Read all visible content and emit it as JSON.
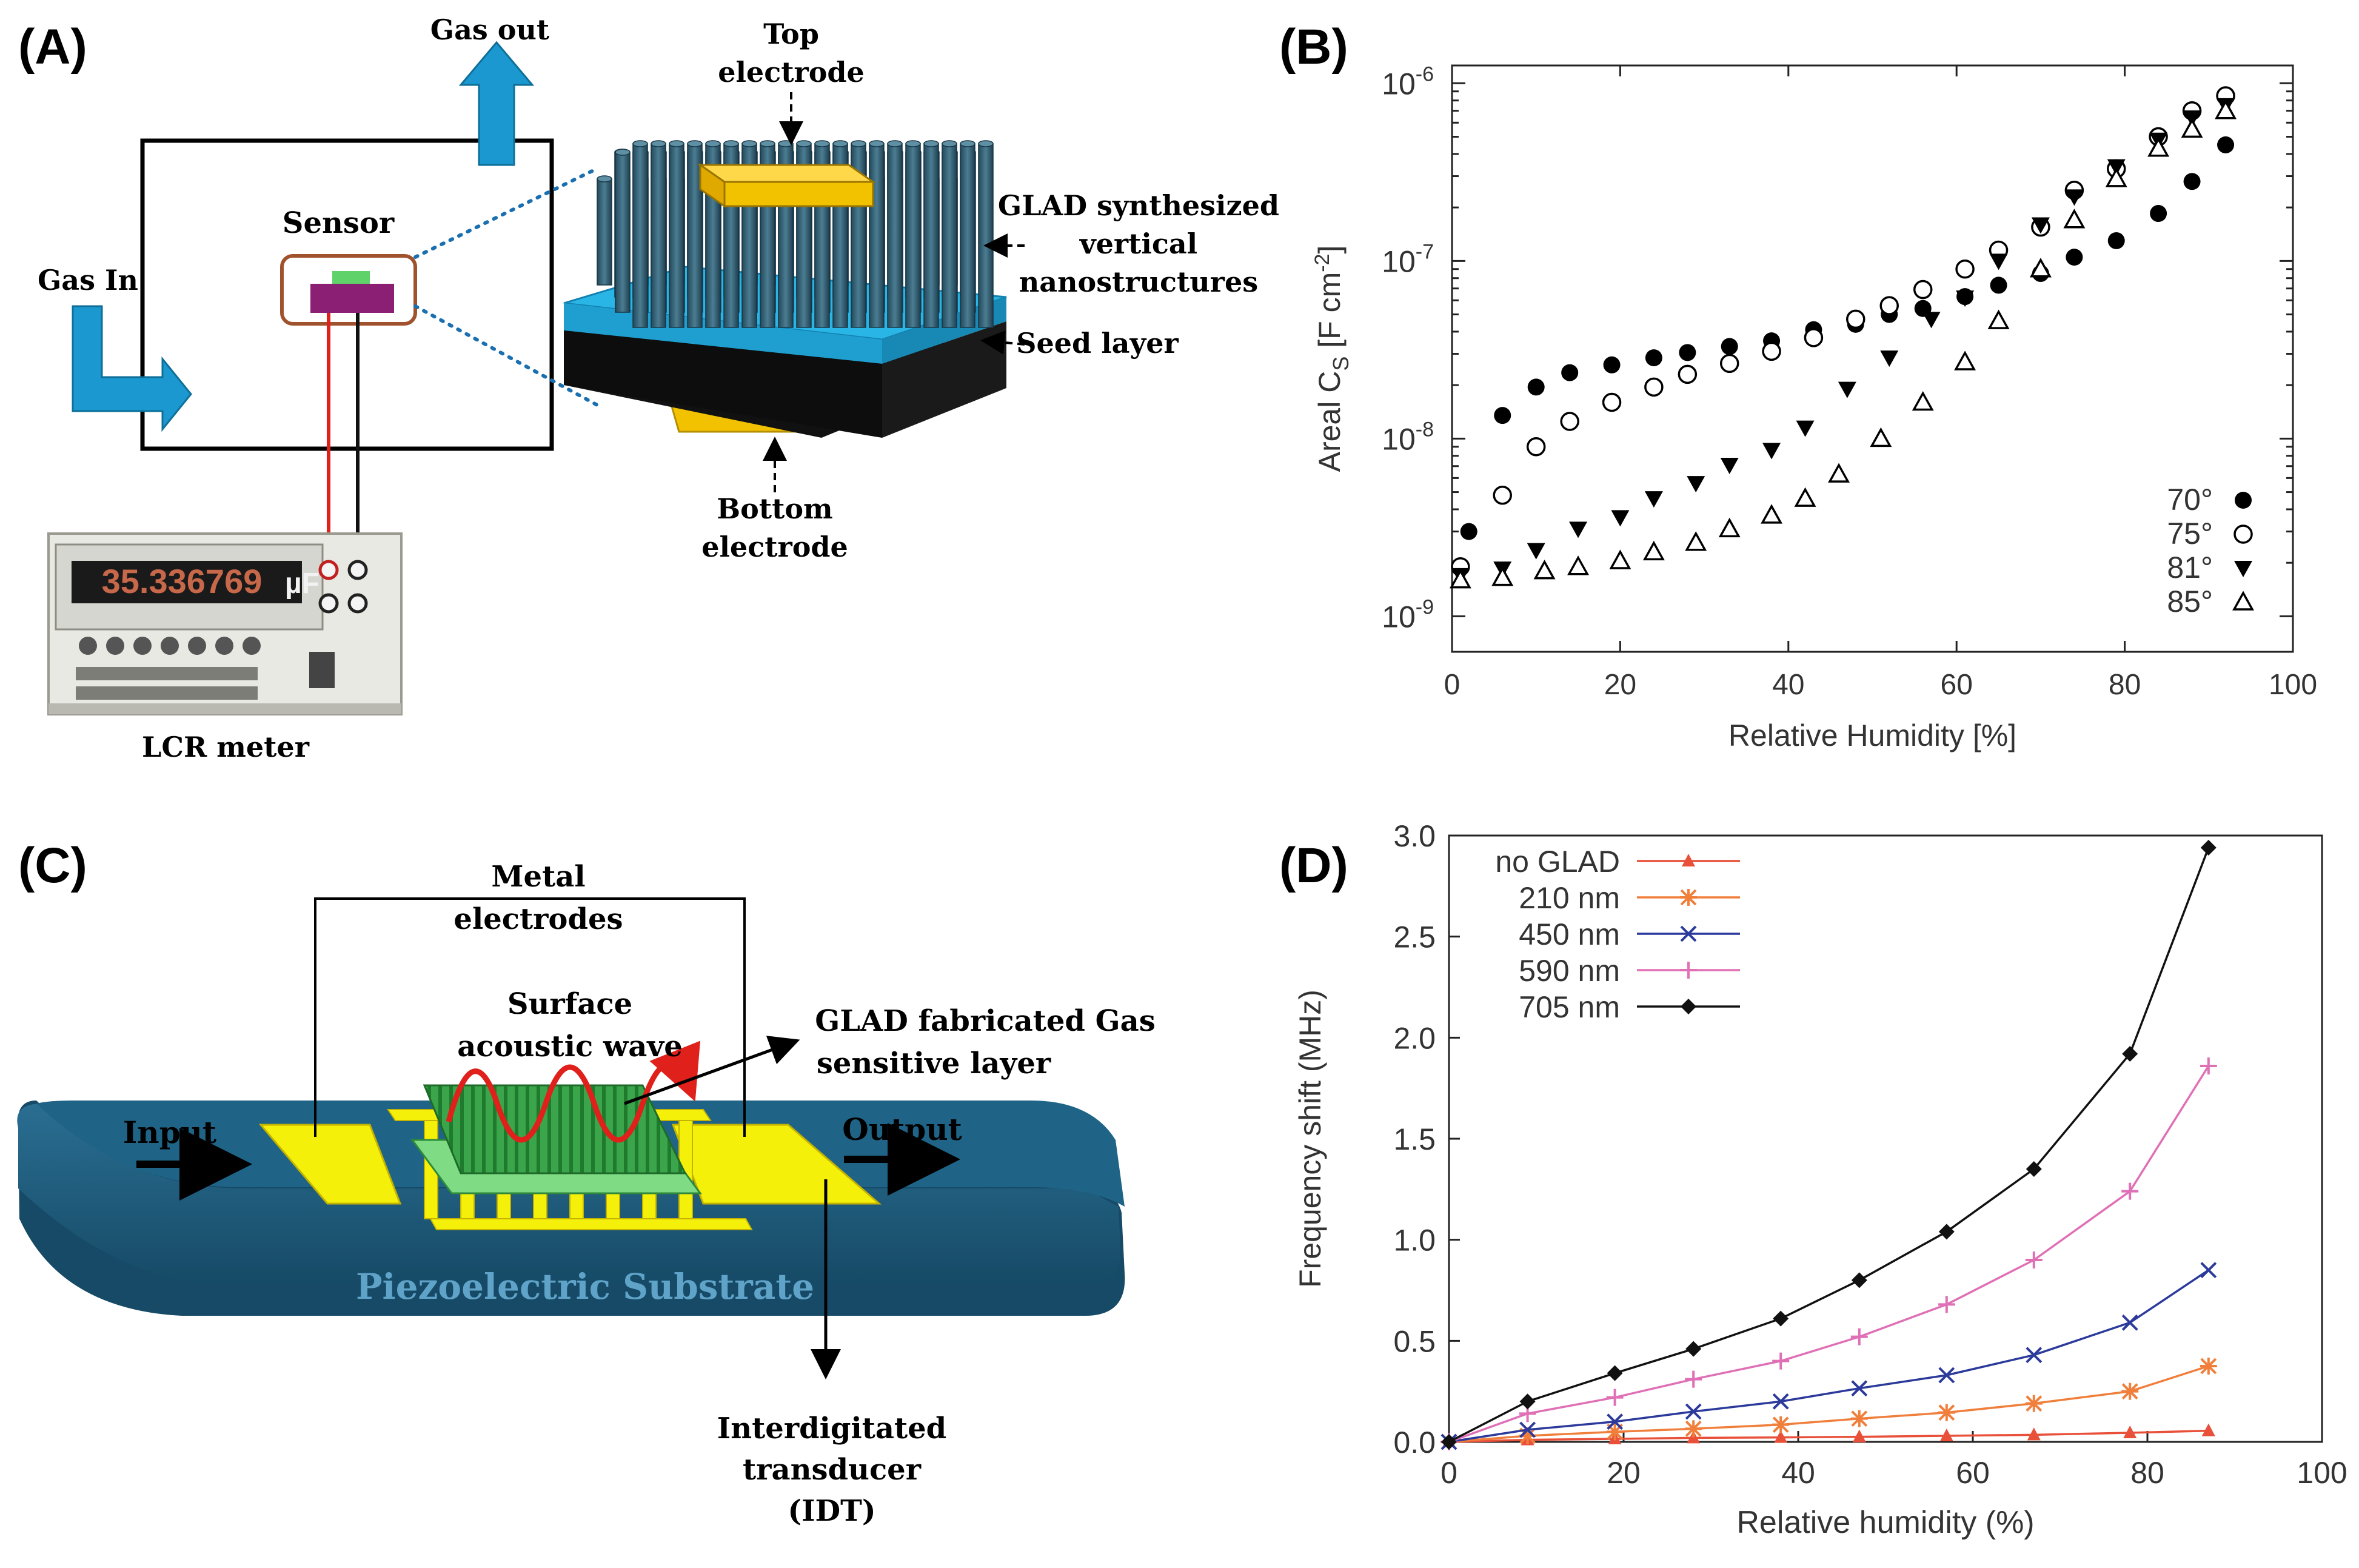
{
  "panels": {
    "a": {
      "label": "(A)",
      "gas_out": "Gas out",
      "gas_in": "Gas In",
      "sensor": "Sensor",
      "lcr_meter": "LCR meter",
      "meter_display": "35.336769",
      "meter_unit": "µF",
      "top_electrode": [
        "Top",
        "electrode"
      ],
      "glad": [
        "GLAD synthesized",
        "vertical",
        "nanostructures"
      ],
      "seed_layer": "Seed layer",
      "bottom_electrode": [
        "Bottom",
        "electrode"
      ]
    },
    "b": {
      "label": "(B)"
    },
    "c": {
      "label": "(C)",
      "metal_electrodes": [
        "Metal",
        "electrodes"
      ],
      "saw": [
        "Surface",
        "acoustic wave"
      ],
      "glad_layer": [
        "GLAD fabricated Gas",
        "sensitive layer"
      ],
      "input": "Input",
      "output": "Output",
      "substrate": "Piezoelectric Substrate",
      "idt": [
        "Interdigitated",
        "transducer",
        "(IDT)"
      ]
    },
    "d": {
      "label": "(D)"
    }
  },
  "colors": {
    "nano_rod": "#2f5a6c",
    "seed_layer": "#29b6e6",
    "electrode_gold": "#f2c200",
    "arrow_blue": "#1a98cf",
    "sensor_box": "#a0522d",
    "substrate": "#1e5a7a",
    "electrode_yellow": "#f5f00a",
    "glad_green": "#2e9a3e",
    "wave_red": "#e0201b",
    "no_glad": "#e8503a",
    "nm210": "#f07f3c",
    "nm450": "#2b3a9b",
    "nm590": "#e070b6",
    "nm705": "#111111"
  },
  "chart_data": [
    {
      "type": "scatter",
      "panel": "B",
      "xlabel": "Relative Humidity [%]",
      "ylabel": "Areal C",
      "ylabel_sub": "S",
      "ylabel_unit": "[F cm",
      "ylabel_exp": "-2",
      "ylabel_close": "]",
      "xlim": [
        0,
        100
      ],
      "ylim_log10": [
        -9.2,
        -5.9
      ],
      "yscale": "log",
      "xticks": [
        "0",
        "20",
        "40",
        "60",
        "80",
        "100"
      ],
      "yticks": [
        {
          "base": "10",
          "exp": "-9"
        },
        {
          "base": "10",
          "exp": "-8"
        },
        {
          "base": "10",
          "exp": "-7"
        },
        {
          "base": "10",
          "exp": "-6"
        }
      ],
      "legend_position": "bottom-right",
      "series": [
        {
          "name": "70°",
          "marker": "filled-circle",
          "x": [
            2,
            6,
            10,
            14,
            19,
            24,
            28,
            33,
            38,
            43,
            48,
            52,
            56,
            61,
            65,
            70,
            74,
            79,
            84,
            88,
            92
          ],
          "y": [
            3e-09,
            1.35e-08,
            1.95e-08,
            2.35e-08,
            2.6e-08,
            2.85e-08,
            3.05e-08,
            3.3e-08,
            3.55e-08,
            4.1e-08,
            4.4e-08,
            5e-08,
            5.4e-08,
            6.3e-08,
            7.3e-08,
            8.5e-08,
            1.05e-07,
            1.3e-07,
            1.85e-07,
            2.8e-07,
            4.5e-07
          ]
        },
        {
          "name": "75°",
          "marker": "open-circle",
          "x": [
            1,
            6,
            10,
            14,
            19,
            24,
            28,
            33,
            38,
            43,
            48,
            52,
            56,
            61,
            65,
            70,
            74,
            79,
            84,
            88,
            92
          ],
          "y": [
            1.9e-09,
            4.8e-09,
            9e-09,
            1.25e-08,
            1.6e-08,
            1.95e-08,
            2.3e-08,
            2.65e-08,
            3.1e-08,
            3.7e-08,
            4.7e-08,
            5.6e-08,
            6.9e-08,
            9e-08,
            1.15e-07,
            1.55e-07,
            2.5e-07,
            3.3e-07,
            5e-07,
            7e-07,
            8.5e-07
          ]
        },
        {
          "name": "81°",
          "marker": "filled-triangle-down",
          "x": [
            1,
            6,
            10,
            15,
            20,
            24,
            29,
            33,
            38,
            42,
            47,
            52,
            57,
            61,
            65,
            70,
            74,
            79,
            84,
            88,
            92
          ],
          "y": [
            1.7e-09,
            1.85e-09,
            2.35e-09,
            3.1e-09,
            3.6e-09,
            4.6e-09,
            5.6e-09,
            7.1e-09,
            8.6e-09,
            1.15e-08,
            1.9e-08,
            2.85e-08,
            4.7e-08,
            6.2e-08,
            1e-07,
            1.6e-07,
            2.3e-07,
            3.4e-07,
            4.8e-07,
            6.4e-07,
            7.5e-07
          ]
        },
        {
          "name": "85°",
          "marker": "open-triangle-up",
          "x": [
            1,
            6,
            11,
            15,
            20,
            24,
            29,
            33,
            38,
            42,
            46,
            51,
            56,
            61,
            65,
            70,
            74,
            79,
            84,
            88,
            92
          ],
          "y": [
            1.6e-09,
            1.65e-09,
            1.8e-09,
            1.9e-09,
            2.05e-09,
            2.3e-09,
            2.6e-09,
            3.1e-09,
            3.7e-09,
            4.6e-09,
            6.3e-09,
            1e-08,
            1.6e-08,
            2.7e-08,
            4.6e-08,
            9e-08,
            1.7e-07,
            2.9e-07,
            4.3e-07,
            5.5e-07,
            7e-07
          ]
        }
      ]
    },
    {
      "type": "line",
      "panel": "D",
      "xlabel": "Relative humidity (%)",
      "ylabel": "Frequency shift (MHz)",
      "xlim": [
        0,
        100
      ],
      "ylim": [
        0,
        3.0
      ],
      "xticks": [
        "0",
        "20",
        "40",
        "60",
        "80",
        "100"
      ],
      "yticks": [
        "0.0",
        "0.5",
        "1.0",
        "1.5",
        "2.0",
        "2.5",
        "3.0"
      ],
      "legend_position": "top-left",
      "x": [
        0,
        9,
        19,
        28,
        38,
        47,
        57,
        67,
        78,
        87
      ],
      "series": [
        {
          "name": "no GLAD",
          "marker": "filled-triangle",
          "values": [
            0,
            0.01,
            0.015,
            0.02,
            0.022,
            0.025,
            0.03,
            0.035,
            0.045,
            0.055
          ]
        },
        {
          "name": "210 nm",
          "marker": "star",
          "values": [
            0,
            0.03,
            0.05,
            0.065,
            0.085,
            0.115,
            0.145,
            0.19,
            0.25,
            0.375
          ]
        },
        {
          "name": "450 nm",
          "marker": "cross",
          "values": [
            0,
            0.06,
            0.1,
            0.15,
            0.2,
            0.265,
            0.33,
            0.43,
            0.59,
            0.85
          ]
        },
        {
          "name": "590 nm",
          "marker": "plus",
          "values": [
            0,
            0.14,
            0.22,
            0.31,
            0.4,
            0.52,
            0.68,
            0.9,
            1.24,
            1.86
          ]
        },
        {
          "name": "705 nm",
          "marker": "filled-diamond",
          "values": [
            0,
            0.2,
            0.34,
            0.46,
            0.61,
            0.8,
            1.04,
            1.35,
            1.92,
            2.94
          ]
        }
      ]
    }
  ]
}
